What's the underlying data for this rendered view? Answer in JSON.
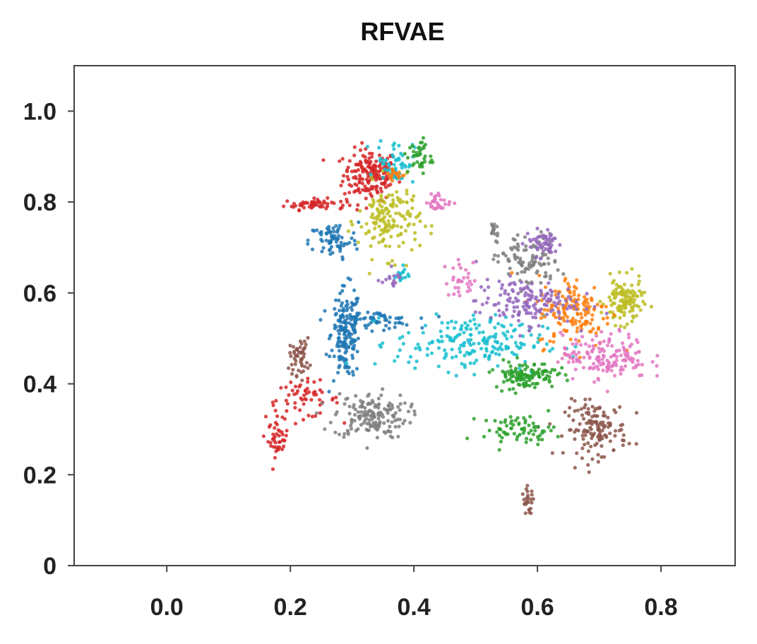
{
  "chart_data": {
    "type": "scatter",
    "title": "RFVAE",
    "xlabel": "",
    "ylabel": "",
    "xlim": [
      -0.15,
      0.92
    ],
    "ylim": [
      0,
      1.1
    ],
    "x_ticks": [
      {
        "value": 0.0,
        "label": "0.0"
      },
      {
        "value": 0.2,
        "label": "0.2"
      },
      {
        "value": 0.4,
        "label": "0.4"
      },
      {
        "value": 0.6,
        "label": "0.6"
      },
      {
        "value": 0.8,
        "label": "0.8"
      }
    ],
    "y_ticks": [
      {
        "value": 0.0,
        "label": "0"
      },
      {
        "value": 0.2,
        "label": "0.2"
      },
      {
        "value": 0.4,
        "label": "0.4"
      },
      {
        "value": 0.6,
        "label": "0.6"
      },
      {
        "value": 0.8,
        "label": "0.8"
      },
      {
        "value": 1.0,
        "label": "1.0"
      }
    ],
    "grid": false,
    "legend": "none",
    "series": [
      {
        "color": "#d62728",
        "clusters": [
          {
            "cx": 0.33,
            "cy": 0.86,
            "sx": 0.022,
            "sy": 0.028,
            "n": 180
          },
          {
            "cx": 0.24,
            "cy": 0.795,
            "sx": 0.025,
            "sy": 0.006,
            "n": 60
          },
          {
            "cx": 0.18,
            "cy": 0.28,
            "sx": 0.008,
            "sy": 0.02,
            "n": 40
          },
          {
            "cx": 0.22,
            "cy": 0.365,
            "sx": 0.03,
            "sy": 0.02,
            "n": 60
          }
        ]
      },
      {
        "color": "#1f77b4",
        "clusters": [
          {
            "cx": 0.29,
            "cy": 0.51,
            "sx": 0.012,
            "sy": 0.05,
            "n": 160
          },
          {
            "cx": 0.33,
            "cy": 0.54,
            "sx": 0.035,
            "sy": 0.01,
            "n": 70
          },
          {
            "cx": 0.27,
            "cy": 0.715,
            "sx": 0.02,
            "sy": 0.02,
            "n": 70
          }
        ]
      },
      {
        "color": "#7f7f7f",
        "clusters": [
          {
            "cx": 0.33,
            "cy": 0.33,
            "sx": 0.03,
            "sy": 0.025,
            "n": 160
          },
          {
            "cx": 0.585,
            "cy": 0.67,
            "sx": 0.025,
            "sy": 0.03,
            "n": 100
          },
          {
            "cx": 0.53,
            "cy": 0.74,
            "sx": 0.004,
            "sy": 0.01,
            "n": 15
          }
        ]
      },
      {
        "color": "#8c564b",
        "clusters": [
          {
            "cx": 0.215,
            "cy": 0.46,
            "sx": 0.008,
            "sy": 0.02,
            "n": 50
          },
          {
            "cx": 0.695,
            "cy": 0.3,
            "sx": 0.025,
            "sy": 0.03,
            "n": 140
          },
          {
            "cx": 0.585,
            "cy": 0.14,
            "sx": 0.005,
            "sy": 0.015,
            "n": 25
          }
        ]
      },
      {
        "color": "#bcbd22",
        "clusters": [
          {
            "cx": 0.36,
            "cy": 0.76,
            "sx": 0.025,
            "sy": 0.04,
            "n": 150
          },
          {
            "cx": 0.74,
            "cy": 0.58,
            "sx": 0.015,
            "sy": 0.025,
            "n": 120
          }
        ]
      },
      {
        "color": "#17becf",
        "clusters": [
          {
            "cx": 0.37,
            "cy": 0.89,
            "sx": 0.015,
            "sy": 0.025,
            "n": 60
          },
          {
            "cx": 0.49,
            "cy": 0.49,
            "sx": 0.06,
            "sy": 0.03,
            "n": 200
          },
          {
            "cx": 0.38,
            "cy": 0.64,
            "sx": 0.006,
            "sy": 0.01,
            "n": 15
          }
        ]
      },
      {
        "color": "#ff7f0e",
        "clusters": [
          {
            "cx": 0.66,
            "cy": 0.56,
            "sx": 0.03,
            "sy": 0.04,
            "n": 150
          },
          {
            "cx": 0.37,
            "cy": 0.86,
            "sx": 0.008,
            "sy": 0.008,
            "n": 20
          }
        ]
      },
      {
        "color": "#2ca02c",
        "clusters": [
          {
            "cx": 0.58,
            "cy": 0.42,
            "sx": 0.025,
            "sy": 0.015,
            "n": 120
          },
          {
            "cx": 0.57,
            "cy": 0.3,
            "sx": 0.03,
            "sy": 0.015,
            "n": 70
          },
          {
            "cx": 0.41,
            "cy": 0.9,
            "sx": 0.01,
            "sy": 0.02,
            "n": 40
          }
        ]
      },
      {
        "color": "#9467bd",
        "clusters": [
          {
            "cx": 0.58,
            "cy": 0.58,
            "sx": 0.04,
            "sy": 0.025,
            "n": 150
          },
          {
            "cx": 0.61,
            "cy": 0.71,
            "sx": 0.015,
            "sy": 0.015,
            "n": 50
          },
          {
            "cx": 0.36,
            "cy": 0.63,
            "sx": 0.01,
            "sy": 0.008,
            "n": 15
          }
        ]
      },
      {
        "color": "#e377c2",
        "clusters": [
          {
            "cx": 0.71,
            "cy": 0.46,
            "sx": 0.035,
            "sy": 0.025,
            "n": 160
          },
          {
            "cx": 0.44,
            "cy": 0.8,
            "sx": 0.01,
            "sy": 0.01,
            "n": 30
          },
          {
            "cx": 0.48,
            "cy": 0.63,
            "sx": 0.015,
            "sy": 0.02,
            "n": 30
          }
        ]
      }
    ]
  }
}
